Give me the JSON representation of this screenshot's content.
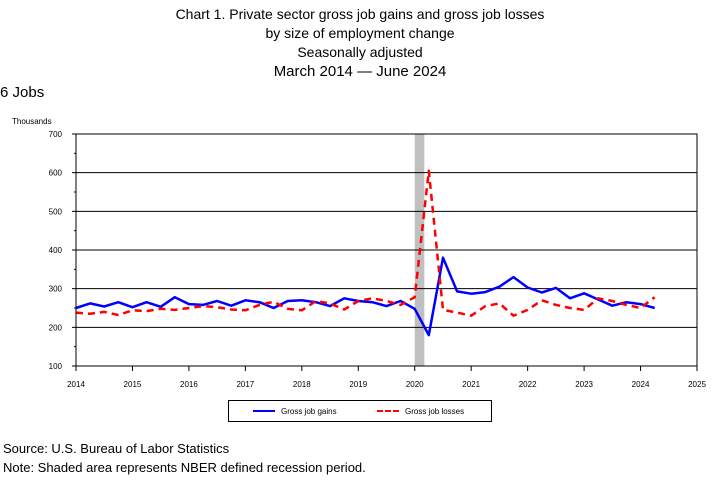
{
  "header": {
    "title_line1": "Chart 1. Private sector gross job gains and gross job losses",
    "title_line2": "by size of employment change",
    "title_line3": "Seasonally adjusted",
    "title_line4": "March 2014 — June 2024",
    "subtitle": "6 Jobs"
  },
  "footer": {
    "source": "Source: U.S. Bureau of Labor Statistics",
    "note": "Note: Shaded area represents NBER defined recession period."
  },
  "chart_data": {
    "type": "line",
    "ylabel": "Thousands",
    "xlabel": "",
    "xlim": [
      2014,
      2025
    ],
    "ylim": [
      100,
      700
    ],
    "x_ticks": [
      "2014",
      "2015",
      "2016",
      "2017",
      "2018",
      "2019",
      "2020",
      "2021",
      "2022",
      "2023",
      "2024",
      "2025"
    ],
    "y_ticks": [
      "100",
      "200",
      "300",
      "400",
      "500",
      "600",
      "700"
    ],
    "grid": "horizontal",
    "legend_position": "bottom",
    "recession": [
      2020.0,
      2020.17
    ],
    "x": [
      2014.0,
      2014.25,
      2014.5,
      2014.75,
      2015.0,
      2015.25,
      2015.5,
      2015.75,
      2016.0,
      2016.25,
      2016.5,
      2016.75,
      2017.0,
      2017.25,
      2017.5,
      2017.75,
      2018.0,
      2018.25,
      2018.5,
      2018.75,
      2019.0,
      2019.25,
      2019.5,
      2019.75,
      2020.0,
      2020.25,
      2020.5,
      2020.75,
      2021.0,
      2021.25,
      2021.5,
      2021.75,
      2022.0,
      2022.25,
      2022.5,
      2022.75,
      2023.0,
      2023.25,
      2023.5,
      2023.75,
      2024.0,
      2024.25
    ],
    "series": [
      {
        "name": "Gross job gains",
        "color": "#0000ff",
        "style": "solid",
        "values": [
          250,
          262,
          254,
          265,
          252,
          265,
          253,
          278,
          260,
          258,
          268,
          256,
          270,
          265,
          250,
          268,
          270,
          265,
          255,
          275,
          268,
          265,
          255,
          268,
          248,
          180,
          380,
          293,
          287,
          291,
          305,
          330,
          303,
          290,
          302,
          275,
          288,
          272,
          256,
          265,
          260,
          250
        ]
      },
      {
        "name": "Gross job losses",
        "color": "#ff0000",
        "style": "dashed",
        "values": [
          238,
          235,
          240,
          232,
          244,
          242,
          248,
          245,
          250,
          255,
          252,
          246,
          244,
          258,
          266,
          248,
          244,
          268,
          262,
          246,
          268,
          275,
          268,
          258,
          278,
          605,
          245,
          238,
          230,
          255,
          262,
          230,
          245,
          270,
          258,
          250,
          245,
          275,
          268,
          258,
          250,
          278
        ]
      }
    ]
  }
}
